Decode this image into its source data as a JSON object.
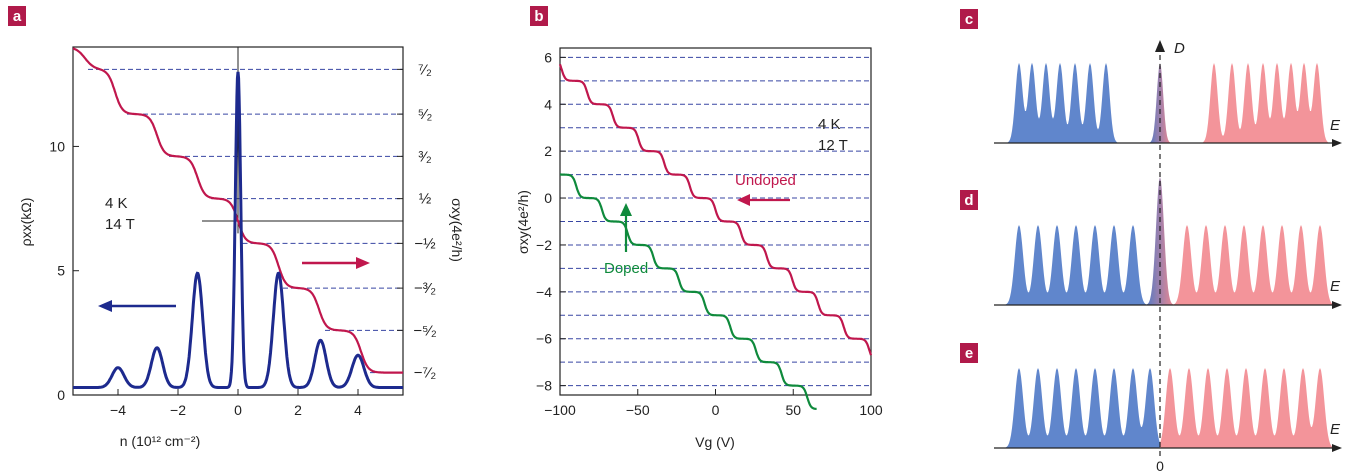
{
  "panels": {
    "a": "a",
    "b": "b",
    "c": "c",
    "d": "d",
    "e": "e"
  },
  "colors": {
    "red": "#c0174d",
    "blue": "#1d2a8e",
    "green": "#0f8a3c",
    "dash": "#3846a3",
    "badge": "#b01a4a",
    "dos_blue": "#4f79c6",
    "dos_red": "#f2888f"
  },
  "chart_data": [
    {
      "panel": "a",
      "type": "line",
      "xlabel": "n (10¹² cm⁻²)",
      "ylabel": "ρxx(kΩ)",
      "y2label": "σxy(4e²/h)",
      "xlim": [
        -5.5,
        5.5
      ],
      "ylim": [
        0,
        14
      ],
      "xticks": [
        -4,
        -2,
        0,
        2,
        4
      ],
      "yticks": [
        0,
        5,
        10
      ],
      "y2_ticks": [
        {
          "label": "⁷⁄₂",
          "y": 13.1
        },
        {
          "label": "⁵⁄₂",
          "y": 11.3
        },
        {
          "label": "³⁄₂",
          "y": 9.6
        },
        {
          "label": "½",
          "y": 7.9
        },
        {
          "label": "−½",
          "y": 6.1
        },
        {
          "label": "−³⁄₂",
          "y": 4.3
        },
        {
          "label": "−⁵⁄₂",
          "y": 2.6
        },
        {
          "label": "−⁷⁄₂",
          "y": 0.9
        }
      ],
      "annotations": [
        "4 K",
        "14 T"
      ],
      "rho_peaks": [
        {
          "n": 0,
          "rho": 12.7
        },
        {
          "n": -1.35,
          "rho": 4.6
        },
        {
          "n": 1.35,
          "rho": 4.6
        },
        {
          "n": -2.7,
          "rho": 1.6
        },
        {
          "n": 2.75,
          "rho": 1.9
        },
        {
          "n": -4.0,
          "rho": 0.8
        },
        {
          "n": 4.0,
          "rho": 1.3
        }
      ],
      "sigma_plateaus": [
        {
          "n_from": -5.5,
          "n_to": -4.4,
          "value": "7/2"
        },
        {
          "n_from": -3.9,
          "n_to": -2.9,
          "value": "5/2"
        },
        {
          "n_from": -2.5,
          "n_to": -1.6,
          "value": "3/2"
        },
        {
          "n_from": -1.1,
          "n_to": -0.15,
          "value": "1/2"
        },
        {
          "n_from": 0.15,
          "n_to": 1.05,
          "value": "-1/2"
        },
        {
          "n_from": 1.55,
          "n_to": 2.5,
          "value": "-3/2"
        },
        {
          "n_from": 2.95,
          "n_to": 3.85,
          "value": "-5/2"
        },
        {
          "n_from": 4.35,
          "n_to": 5.5,
          "value": "-7/2"
        }
      ]
    },
    {
      "panel": "b",
      "type": "line",
      "xlabel": "Vg (V)",
      "ylabel": "σxy(4e²/h)",
      "xlim": [
        -100,
        100
      ],
      "ylim": [
        -8.4,
        6.4
      ],
      "xticks": [
        -100,
        -50,
        0,
        50,
        100
      ],
      "yticks": [
        -8,
        -6,
        -4,
        -2,
        0,
        2,
        4,
        6
      ],
      "dashed_levels": [
        6,
        5,
        4,
        3,
        2,
        1,
        0,
        -1,
        -2,
        -3,
        -4,
        -5,
        -6,
        -7,
        -8
      ],
      "annotations": [
        "4 K",
        "12 T"
      ],
      "series": [
        {
          "name": "Undoped",
          "vg": [
            -100,
            100
          ],
          "sigma_start": 6,
          "sigma_end": -6,
          "centre_vg": 0
        },
        {
          "name": "Doped",
          "vg": [
            -100,
            65
          ],
          "sigma_start": 1.7,
          "sigma_end": -8.4,
          "centre_vg": -73
        }
      ]
    }
  ],
  "dos": {
    "d_label": "D",
    "e_label": "E",
    "zero_label": "0"
  }
}
